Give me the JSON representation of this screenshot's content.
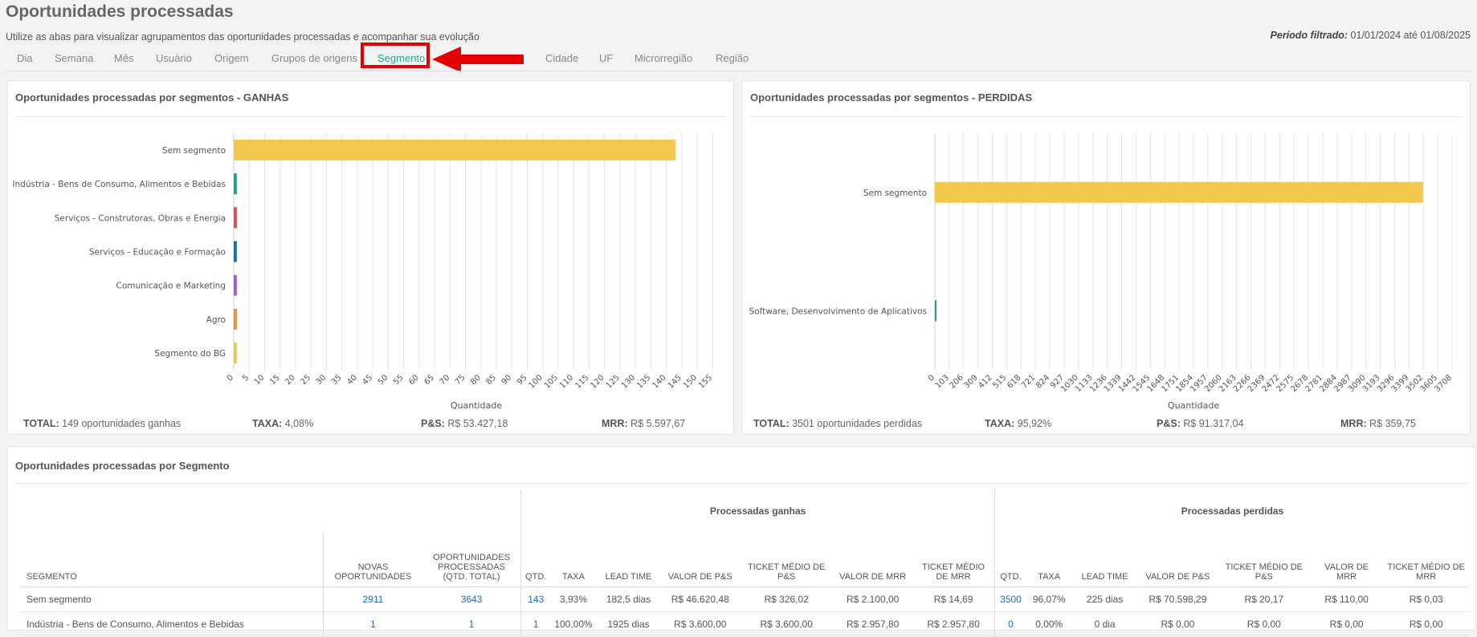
{
  "page": {
    "title": "Oportunidades processadas",
    "subtitle": "Utilize as abas para visualizar agrupamentos das oportunidades processadas e acompanhar sua evolução",
    "period_label": "Período filtrado:",
    "period_value": "01/01/2024 até 01/08/2025"
  },
  "tabs": [
    {
      "label": "Dia",
      "active": false
    },
    {
      "label": "Semana",
      "active": false
    },
    {
      "label": "Mês",
      "active": false
    },
    {
      "label": "Usuário",
      "active": false
    },
    {
      "label": "Origem",
      "active": false
    },
    {
      "label": "Grupos de origens",
      "active": false
    },
    {
      "label": "Segmento",
      "active": true
    },
    {
      "label": "Cidade",
      "active": false
    },
    {
      "label": "UF",
      "active": false
    },
    {
      "label": "Microrregião",
      "active": false
    },
    {
      "label": "Região",
      "active": false
    }
  ],
  "colors": {
    "accent": "#2aa889",
    "highlight": "#e30000",
    "bar_primary": "#f2c94c",
    "link": "#1a6fae"
  },
  "chart_data": [
    {
      "type": "bar",
      "orientation": "horizontal",
      "title": "Oportunidades processadas por segmentos - GANHAS",
      "xlabel": "Quantidade",
      "categories": [
        "Sem segmento",
        "Indústria - Bens de Consumo, Alimentos e Bebidas",
        "Serviços - Construtoras, Obras e Energia",
        "Serviços - Educação e Formação",
        "Comunicação e Marketing",
        "Agro",
        "Segmento do BG"
      ],
      "values": [
        143,
        1,
        1,
        1,
        1,
        1,
        1
      ],
      "colors": [
        "#f2c94c",
        "#1fa28c",
        "#e0485e",
        "#1a6fae",
        "#a45cd6",
        "#f08c3a",
        "#f2c94c"
      ],
      "xlim": [
        0,
        157
      ],
      "xticks": [
        0,
        5,
        10,
        15,
        20,
        25,
        30,
        35,
        40,
        45,
        50,
        55,
        60,
        65,
        70,
        75,
        80,
        85,
        90,
        95,
        100,
        105,
        110,
        115,
        120,
        125,
        130,
        135,
        140,
        145,
        150,
        155
      ],
      "grid": true,
      "totals": {
        "total_label": "TOTAL:",
        "total_value": "149 oportunidades ganhas",
        "taxa_label": "TAXA:",
        "taxa_value": "4,08%",
        "ps_label": "P&S:",
        "ps_value": "R$ 53.427,18",
        "mrr_label": "MRR:",
        "mrr_value": "R$ 5.597,67"
      }
    },
    {
      "type": "bar",
      "orientation": "horizontal",
      "title": "Oportunidades processadas por segmentos - PERDIDAS",
      "xlabel": "Quantidade",
      "categories": [
        "Sem segmento",
        "Software, Desenvolvimento de Aplicativos"
      ],
      "values": [
        3500,
        1
      ],
      "colors": [
        "#f2c94c",
        "#1fa28c"
      ],
      "xlim": [
        0,
        3708
      ],
      "xticks": [
        0,
        103,
        206,
        309,
        412,
        515,
        618,
        721,
        824,
        927,
        1030,
        1133,
        1236,
        1339,
        1442,
        1545,
        1648,
        1751,
        1854,
        1957,
        2060,
        2163,
        2266,
        2369,
        2472,
        2575,
        2678,
        2781,
        2884,
        2987,
        3090,
        3193,
        3296,
        3399,
        3502,
        3605,
        3708
      ],
      "grid": true,
      "totals": {
        "total_label": "TOTAL:",
        "total_value": "3501 oportunidades perdidas",
        "taxa_label": "TAXA:",
        "taxa_value": "95,92%",
        "ps_label": "P&S:",
        "ps_value": "R$ 91.317,04",
        "mrr_label": "MRR:",
        "mrr_value": "R$ 359,75"
      }
    }
  ],
  "table": {
    "title": "Oportunidades processadas por Segmento",
    "group_won": "Processadas ganhas",
    "group_lost": "Processadas perdidas",
    "headers": {
      "segmento": "SEGMENTO",
      "novas": "NOVAS OPORTUNIDADES",
      "processadas": "OPORTUNIDADES PROCESSADAS (QTD. TOTAL)",
      "qtd": "QTD.",
      "taxa": "TAXA",
      "lead": "LEAD TIME",
      "valor_ps": "VALOR DE P&S",
      "ticket_ps": "TICKET MÉDIO DE P&S",
      "valor_mrr": "VALOR DE MRR",
      "ticket_mrr": "TICKET MÉDIO DE MRR"
    },
    "rows": [
      [
        "Sem segmento",
        "2911",
        "3643",
        "143",
        "3,93%",
        "182,5 dias",
        "R$ 46.620,48",
        "R$ 326,02",
        "R$ 2.100,00",
        "R$ 14,69",
        "3500",
        "96,07%",
        "225 dias",
        "R$ 70.598,29",
        "R$ 20,17",
        "R$ 110,00",
        "R$ 0,03"
      ],
      [
        "Indústria - Bens de Consumo, Alimentos e Bebidas",
        "1",
        "1",
        "1",
        "100,00%",
        "1925 dias",
        "R$ 3.600,00",
        "R$ 3.600,00",
        "R$ 2.957,80",
        "R$ 2.957,80",
        "0",
        "0,00%",
        "0 dia",
        "R$ 0,00",
        "R$ 0,00",
        "R$ 0,00",
        "R$ 0,00"
      ]
    ]
  }
}
